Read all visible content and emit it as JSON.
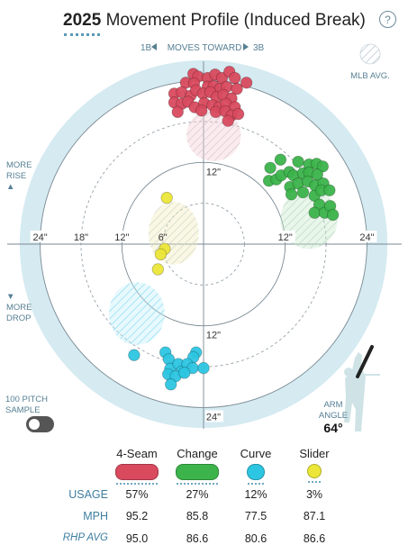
{
  "header": {
    "year": "2025",
    "title": "Movement Profile (Induced Break)",
    "help_label": "?"
  },
  "chart_data": {
    "type": "scatter",
    "title": "2025 Movement Profile (Induced Break)",
    "x_units": "inches horizontal break",
    "y_units": "inches induced vertical break",
    "direction_label": {
      "left_prefix": "1B",
      "middle": "MOVES TOWARD",
      "right_suffix": "3B"
    },
    "ring_labels": {
      "horizontal": [
        "24\"",
        "18\"",
        "12\"",
        "6\"",
        "12\"",
        "24\""
      ],
      "vertical": [
        "12\"",
        "12\"",
        "24\""
      ]
    },
    "rings_inches": [
      6,
      12,
      18,
      24
    ],
    "outer_radius_inches": 27,
    "mlb_avg_label": "MLB AVG.",
    "mlb_avg": [
      {
        "pitch": "4-Seam",
        "x": 1.5,
        "y": 16,
        "rx": 4,
        "ry": 3.8
      },
      {
        "pitch": "Change",
        "x": 15.5,
        "y": 3.7,
        "rx": 4.2,
        "ry": 4.4
      },
      {
        "pitch": "Curve",
        "x": -9.8,
        "y": -10.2,
        "rx": 4.1,
        "ry": 4.6
      },
      {
        "pitch": "Slider",
        "x": -4.4,
        "y": 1.6,
        "rx": 3.7,
        "ry": 4.6
      }
    ],
    "series": [
      {
        "name": "4-Seam",
        "color": "#d94a5e",
        "points": [
          [
            -1.5,
            25
          ],
          [
            -0.8,
            24.6
          ],
          [
            0.6,
            24.4
          ],
          [
            1.7,
            24.9
          ],
          [
            2.7,
            24.4
          ],
          [
            3.8,
            25.3
          ],
          [
            4.6,
            24.4
          ],
          [
            6.3,
            23.7
          ],
          [
            -2.6,
            23.7
          ],
          [
            -1.4,
            23.6
          ],
          [
            0.6,
            23.1
          ],
          [
            1.5,
            23.2
          ],
          [
            2.4,
            22.8
          ],
          [
            3.4,
            23.1
          ],
          [
            4.9,
            22.8
          ],
          [
            -4.3,
            22.1
          ],
          [
            -3.2,
            22.3
          ],
          [
            -1.9,
            21.8
          ],
          [
            -1.1,
            22.6
          ],
          [
            -0.1,
            22.1
          ],
          [
            1.0,
            22.3
          ],
          [
            1.9,
            21.6
          ],
          [
            2.9,
            21.9
          ],
          [
            4.1,
            21.4
          ],
          [
            -4.3,
            20.8
          ],
          [
            -3.2,
            20.6
          ],
          [
            -2.3,
            20.9
          ],
          [
            -1.3,
            20.1
          ],
          [
            0.1,
            20.7
          ],
          [
            1.3,
            20.4
          ],
          [
            2.3,
            20.1
          ],
          [
            3.3,
            20.6
          ],
          [
            4.6,
            20.1
          ],
          [
            -3.8,
            19.4
          ],
          [
            -0.3,
            19.6
          ],
          [
            1.8,
            19.4
          ],
          [
            3.2,
            19.5
          ],
          [
            4.1,
            18.9
          ],
          [
            3.6,
            18.1
          ],
          [
            5.1,
            19.1
          ]
        ]
      },
      {
        "name": "Change",
        "color": "#3cb44b",
        "points": [
          [
            9.8,
            11.2
          ],
          [
            11.3,
            12.4
          ],
          [
            13.9,
            12.1
          ],
          [
            15.5,
            11.7
          ],
          [
            16.6,
            11.8
          ],
          [
            17.5,
            11.4
          ],
          [
            9.6,
            9.3
          ],
          [
            10.7,
            9.5
          ],
          [
            11.4,
            10.1
          ],
          [
            12.6,
            10.6
          ],
          [
            13.2,
            10.1
          ],
          [
            14.6,
            10.4
          ],
          [
            15.5,
            10.5
          ],
          [
            16.7,
            10.2
          ],
          [
            12.7,
            8.4
          ],
          [
            13.9,
            8.9
          ],
          [
            15.3,
            9.2
          ],
          [
            16.4,
            8.6
          ],
          [
            17.6,
            8.9
          ],
          [
            12.9,
            7.3
          ],
          [
            14.6,
            7.6
          ],
          [
            16.3,
            7.1
          ],
          [
            17.3,
            7.9
          ],
          [
            18.5,
            7.9
          ],
          [
            17.0,
            5.8
          ],
          [
            16.3,
            4.6
          ],
          [
            17.8,
            4.6
          ],
          [
            18.6,
            5.6
          ],
          [
            19.0,
            4.3
          ]
        ]
      },
      {
        "name": "Curve",
        "color": "#2dc6e2",
        "points": [
          [
            -10.2,
            -16.3
          ],
          [
            -5.6,
            -15.9
          ],
          [
            -5.1,
            -16.9
          ],
          [
            -1.1,
            -15.9
          ],
          [
            -1.5,
            -16.6
          ],
          [
            -4.9,
            -18.3
          ],
          [
            -3.7,
            -17.6
          ],
          [
            -3.2,
            -18.7
          ],
          [
            -2.4,
            -17.6
          ],
          [
            -1.6,
            -18.2
          ],
          [
            0,
            -18.2
          ],
          [
            -5.2,
            -19.1
          ],
          [
            -4.1,
            -19.4
          ],
          [
            -2.8,
            -18.9
          ],
          [
            -4.8,
            -20.6
          ]
        ]
      },
      {
        "name": "Slider",
        "color": "#ece638",
        "points": [
          [
            -5.4,
            6.8
          ],
          [
            -5.7,
            -0.7
          ],
          [
            -6.3,
            -1.5
          ],
          [
            -6.7,
            -3.7
          ]
        ]
      }
    ],
    "side_labels": {
      "rise": "MORE RISE",
      "drop": "MORE DROP"
    },
    "sample": {
      "label": "100 PITCH SAMPLE",
      "enabled": false
    },
    "arm_angle": {
      "label": "ARM ANGLE",
      "value": "64°"
    },
    "legend": {
      "pitches": [
        "4-Seam",
        "Change",
        "Curve",
        "Slider"
      ],
      "colors": [
        "#d94a5e",
        "#3cb44b",
        "#2dc6e2",
        "#ece638"
      ],
      "rows": [
        {
          "label": "USAGE",
          "italic": false,
          "values": [
            "57%",
            "27%",
            "12%",
            "3%"
          ]
        },
        {
          "label": "MPH",
          "italic": false,
          "values": [
            "95.2",
            "85.8",
            "77.5",
            "87.1"
          ]
        },
        {
          "label": "RHP AVG",
          "italic": true,
          "values": [
            "95.0",
            "86.6",
            "80.6",
            "86.6"
          ]
        }
      ]
    }
  }
}
